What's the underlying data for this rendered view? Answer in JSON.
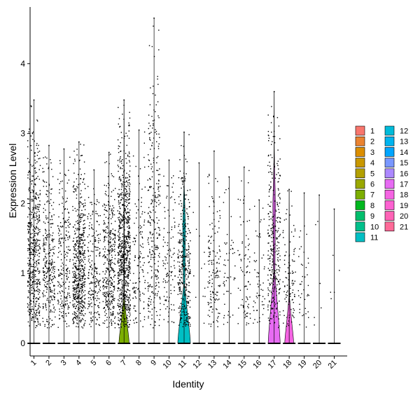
{
  "chart_data": {
    "type": "violin",
    "title": "",
    "xlabel": "Identity",
    "ylabel": "Expression Level",
    "categories": [
      "1",
      "2",
      "3",
      "4",
      "5",
      "6",
      "7",
      "8",
      "9",
      "10",
      "11",
      "12",
      "13",
      "14",
      "15",
      "16",
      "17",
      "18",
      "19",
      "20",
      "21"
    ],
    "ylim": [
      -0.2,
      4.85
    ],
    "yticks": [
      0,
      1,
      2,
      3,
      4
    ],
    "grid": false,
    "legend": {
      "placement": "right",
      "columns": 2,
      "labels": [
        "1",
        "2",
        "3",
        "4",
        "5",
        "6",
        "7",
        "8",
        "9",
        "10",
        "11",
        "12",
        "13",
        "14",
        "15",
        "16",
        "17",
        "18",
        "19",
        "20",
        "21"
      ]
    },
    "colors": [
      "#F8766D",
      "#EA8331",
      "#DB8E00",
      "#C99800",
      "#B3A000",
      "#9AA800",
      "#7CAE00",
      "#00B81F",
      "#00BE6C",
      "#00C08B",
      "#00BFC4",
      "#00BBDA",
      "#00B4EF",
      "#00A5FF",
      "#7997FF",
      "#AC88FF",
      "#E76BF3",
      "#F564E3",
      "#FD61D1",
      "#FF63B6",
      "#FF6A98"
    ],
    "series": [
      {
        "name": "1",
        "max": 3.48,
        "n_points": 520,
        "violin_peak_width": 0.0
      },
      {
        "name": "2",
        "max": 2.83,
        "n_points": 300,
        "violin_peak_width": 0.0
      },
      {
        "name": "3",
        "max": 2.78,
        "n_points": 230,
        "violin_peak_width": 0.0
      },
      {
        "name": "4",
        "max": 2.88,
        "n_points": 560,
        "violin_peak_width": 0.0
      },
      {
        "name": "5",
        "max": 2.48,
        "n_points": 210,
        "violin_peak_width": 0.0
      },
      {
        "name": "6",
        "max": 2.73,
        "n_points": 360,
        "violin_peak_width": 0.0
      },
      {
        "name": "7",
        "max": 3.48,
        "n_points": 760,
        "violin_peak_width": 0.8
      },
      {
        "name": "8",
        "max": 3.05,
        "n_points": 130,
        "violin_peak_width": 0.0
      },
      {
        "name": "9",
        "max": 4.65,
        "n_points": 280,
        "violin_peak_width": 0.0
      },
      {
        "name": "10",
        "max": 2.62,
        "n_points": 110,
        "violin_peak_width": 0.0
      },
      {
        "name": "11",
        "max": 3.02,
        "n_points": 330,
        "violin_peak_width": 1.0
      },
      {
        "name": "12",
        "max": 2.58,
        "n_points": 12,
        "violin_peak_width": 0.0
      },
      {
        "name": "13",
        "max": 2.75,
        "n_points": 140,
        "violin_peak_width": 0.0
      },
      {
        "name": "14",
        "max": 2.38,
        "n_points": 50,
        "violin_peak_width": 0.0
      },
      {
        "name": "15",
        "max": 2.52,
        "n_points": 80,
        "violin_peak_width": 0.0
      },
      {
        "name": "16",
        "max": 2.05,
        "n_points": 55,
        "violin_peak_width": 0.0
      },
      {
        "name": "17",
        "max": 3.6,
        "n_points": 300,
        "violin_peak_width": 0.95
      },
      {
        "name": "18",
        "max": 2.2,
        "n_points": 100,
        "violin_peak_width": 0.7
      },
      {
        "name": "19",
        "max": 2.15,
        "n_points": 40,
        "violin_peak_width": 0.0
      },
      {
        "name": "20",
        "max": 2.12,
        "n_points": 6,
        "violin_peak_width": 0.0
      },
      {
        "name": "21",
        "max": 1.92,
        "n_points": 5,
        "violin_peak_width": 0.0
      }
    ]
  }
}
